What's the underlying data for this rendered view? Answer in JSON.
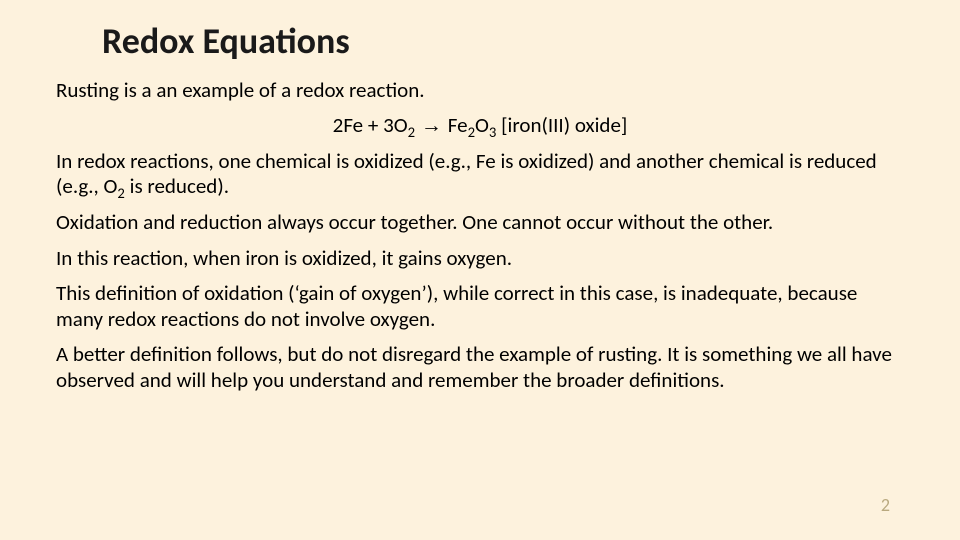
{
  "slide": {
    "background_color": "#fdf2dd",
    "title_color": "#1a1a1a",
    "body_color": "#000000",
    "pagenum_color": "#b9a97f",
    "title_fontsize": 36,
    "body_fontsize": 21,
    "title": "Redox Equations",
    "p1": "Rusting is a an example of a redox reaction.",
    "equation": {
      "lhs1": "2Fe",
      "plus": " + ",
      "lhs2_base": "3O",
      "lhs2_sub": "2",
      "arrow": " → ",
      "rhs_base1": "Fe",
      "rhs_sub1": "2",
      "rhs_base2": "O",
      "rhs_sub2": "3",
      "annot": " [iron(III) oxide]"
    },
    "p2_a": "In redox reactions, one chemical is oxidized (e.g., Fe is oxidized) and another chemical is reduced (e.g., O",
    "p2_sub": "2",
    "p2_b": " is reduced).",
    "p3": "Oxidation and reduction always occur together.  One cannot occur without the other.",
    "p4": "In this reaction, when iron is oxidized, it gains oxygen.",
    "p5": "This definition of oxidation (‘gain of oxygen’), while correct in this case, is inadequate, because many redox reactions do not involve oxygen.",
    "p6": "A better definition follows, but do not disregard the example of rusting.  It is something we all have observed and will help you understand and remember the broader definitions.",
    "page_number": "2"
  }
}
